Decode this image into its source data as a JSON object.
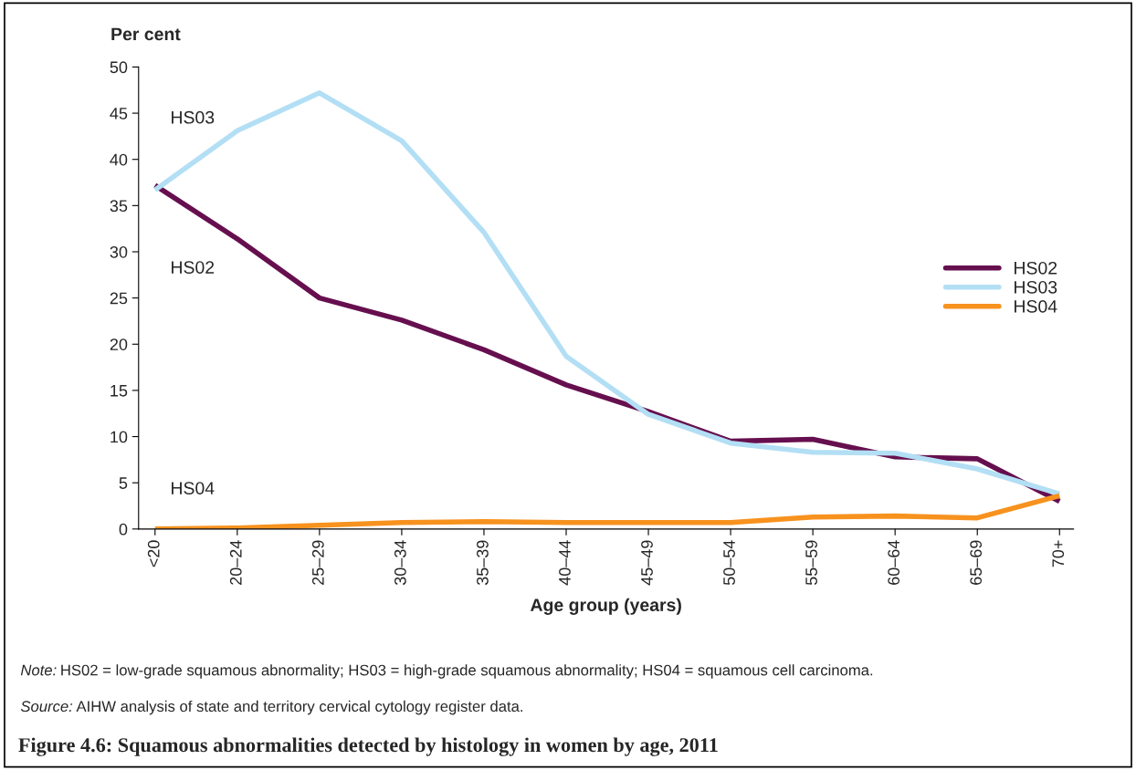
{
  "chart_data": {
    "type": "line",
    "title": "Figure 4.6: Squamous abnormalities detected by histology in women by age, 2011",
    "xlabel": "Age group (years)",
    "ylabel": "Per cent",
    "categories": [
      "<20",
      "20–24",
      "25–29",
      "30–34",
      "35–39",
      "40–44",
      "45–49",
      "50–54",
      "55–59",
      "60–64",
      "65–69",
      "70+"
    ],
    "series": [
      {
        "name": "HS02",
        "color": "#660f4f",
        "values": [
          37.2,
          31.4,
          25.0,
          22.6,
          19.4,
          15.6,
          12.7,
          9.5,
          9.7,
          7.8,
          7.6,
          3.0
        ]
      },
      {
        "name": "HS03",
        "color": "#b3dff5",
        "values": [
          36.7,
          43.1,
          47.2,
          42.0,
          32.1,
          18.7,
          12.4,
          9.3,
          8.3,
          8.2,
          6.5,
          3.8
        ]
      },
      {
        "name": "HS04",
        "color": "#f7921e",
        "values": [
          0.0,
          0.1,
          0.4,
          0.7,
          0.8,
          0.7,
          0.7,
          0.7,
          1.3,
          1.4,
          1.2,
          3.6
        ]
      }
    ],
    "ylim": [
      0,
      50
    ],
    "yticks": [
      0,
      5,
      10,
      15,
      20,
      25,
      30,
      35,
      40,
      45,
      50
    ],
    "grid": false,
    "legend": "right",
    "marker": "none",
    "line_style": "solid",
    "annotations": [
      "Note: HS02 = low-grade squamous abnormality; HS03 = high-grade squamous abnormality; HS04 = squamous cell carcinoma.",
      "Source: AIHW analysis of state and territory cervical cytology register data."
    ]
  }
}
